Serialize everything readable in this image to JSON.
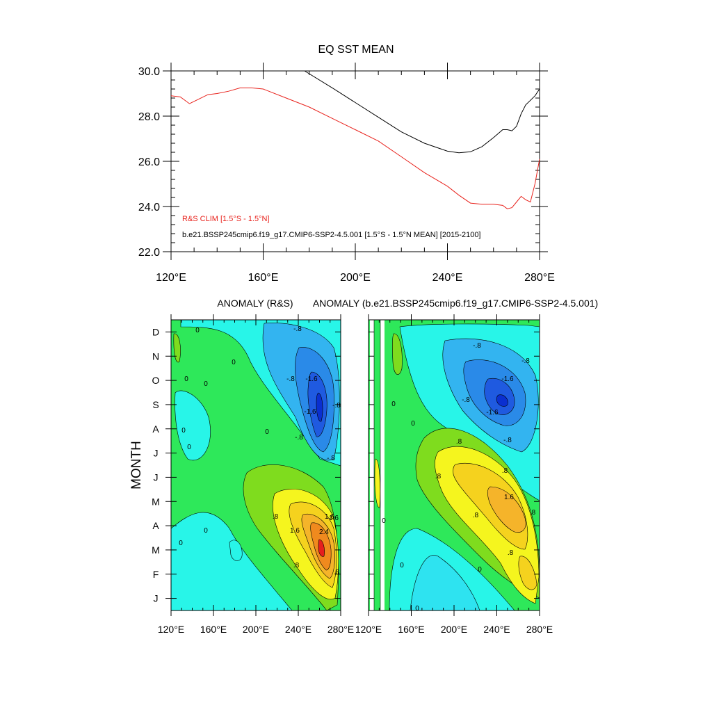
{
  "chart_data": [
    {
      "type": "line",
      "title": "EQ SST MEAN",
      "xlim": [
        120,
        280
      ],
      "ylim": [
        22.0,
        30.0
      ],
      "x_tick_values": [
        120,
        160,
        200,
        240,
        280
      ],
      "x_tick_labels": [
        "120°E",
        "160°E",
        "200°E",
        "240°E",
        "280°E"
      ],
      "y_tick_labels": [
        "30.0",
        "28.0",
        "26.0",
        "24.0",
        "22.0"
      ],
      "y_tick_values": [
        30.0,
        28.0,
        26.0,
        24.0,
        22.0
      ],
      "legend": [
        {
          "text": "R&S CLIM [1.5°S - 1.5°N]",
          "color": "#e8221c"
        },
        {
          "text": "b.e21.BSSP245cmip6.f19_g17.CMIP6-SSP2-4.5.001 [1.5°S - 1.5°N MEAN] [2015-2100]",
          "color": "#000000"
        }
      ],
      "series": [
        {
          "name": "R&S CLIM [1.5°S - 1.5°N]",
          "color": "#e8221c",
          "x": [
            120,
            124,
            128,
            132,
            136,
            140,
            145,
            150,
            155,
            160,
            170,
            180,
            190,
            200,
            210,
            220,
            230,
            240,
            245,
            250,
            255,
            260,
            264,
            266,
            268,
            270,
            272,
            274,
            276,
            278,
            280
          ],
          "y": [
            28.9,
            28.85,
            28.55,
            28.75,
            28.95,
            29.0,
            29.1,
            29.25,
            29.25,
            29.2,
            28.8,
            28.4,
            27.9,
            27.4,
            26.9,
            26.2,
            25.5,
            24.9,
            24.5,
            24.15,
            24.1,
            24.1,
            24.05,
            23.9,
            23.95,
            24.2,
            24.45,
            24.3,
            24.2,
            25.0,
            26.1
          ]
        },
        {
          "name": "b.e21.BSSP245cmip6.f19_g17.CMIP6-SSP2-4.5.001 [1.5°S - 1.5°N MEAN] [2015-2100]",
          "color": "#000000",
          "x": [
            178,
            190,
            200,
            210,
            220,
            230,
            240,
            245,
            250,
            255,
            260,
            264,
            266,
            268,
            270,
            272,
            274,
            276,
            278,
            280
          ],
          "y": [
            30.0,
            29.25,
            28.6,
            27.95,
            27.3,
            26.8,
            26.45,
            26.38,
            26.42,
            26.65,
            27.05,
            27.4,
            27.4,
            27.35,
            27.55,
            28.1,
            28.5,
            28.7,
            28.9,
            29.2
          ]
        }
      ]
    },
    {
      "type": "heatmap",
      "title": "ANOMALY (R&S)",
      "ylabel": "MONTH",
      "x_tick_labels": [
        "120°E",
        "160°E",
        "200°E",
        "240°E",
        "280°E"
      ],
      "y_tick_labels": [
        "J",
        "F",
        "M",
        "A",
        "M",
        "J",
        "J",
        "A",
        "S",
        "O",
        "N",
        "D"
      ],
      "contour_labels": [
        "0",
        "0",
        "0",
        "0",
        "0",
        "0",
        "0",
        "0",
        "0",
        "-.8",
        "-.8",
        "-.8",
        "-1.6",
        "-1.6",
        "-.8",
        "-.8",
        ".8",
        ".8",
        "1.6",
        "1.6",
        "2.4",
        ".8",
        "1.6"
      ],
      "anomaly_scale": [
        -2.4,
        -2.0,
        -1.6,
        -1.2,
        -0.8,
        -0.4,
        0.0,
        0.4,
        0.8,
        1.2,
        1.6,
        2.0,
        2.4,
        2.8
      ],
      "features": {
        "warm_max": {
          "lon": 264,
          "month": 3.0,
          "value": 2.8
        },
        "cold_min": {
          "lon": 262,
          "month": 9.0,
          "value": -2.4
        }
      }
    },
    {
      "type": "heatmap",
      "title": "ANOMALY (b.e21.BSSP245cmip6.f19_g17.CMIP6-SSP2-4.5.001)",
      "x_tick_labels": [
        "120°E",
        "160°E",
        "200°E",
        "240°E",
        "280°E"
      ],
      "contour_labels": [
        "0",
        "0",
        "0",
        "0",
        "0",
        "-.8",
        "-.8",
        "-.8",
        "-.8",
        "-1.6",
        "-1.6",
        ".8",
        ".8",
        ".8",
        ".8",
        "1.6",
        ".8",
        ".8",
        "0"
      ],
      "missing_bands_lon": [
        [
          124,
          127
        ],
        [
          132,
          136
        ]
      ],
      "features": {
        "warm_max": {
          "lon": 245,
          "month": 4.8,
          "value": 1.8
        },
        "cold_min": {
          "lon": 246,
          "month": 9.1,
          "value": -2.1
        }
      }
    }
  ],
  "palette": [
    "#0a2fd0",
    "#1f5ae0",
    "#2a8ae8",
    "#33b4f0",
    "#2ee3f0",
    "#28f5e8",
    "#2ee85a",
    "#7fdc1e",
    "#f5f51e",
    "#f5d21e",
    "#f5b42a",
    "#f08a1e",
    "#e6641e",
    "#e61e1e"
  ]
}
